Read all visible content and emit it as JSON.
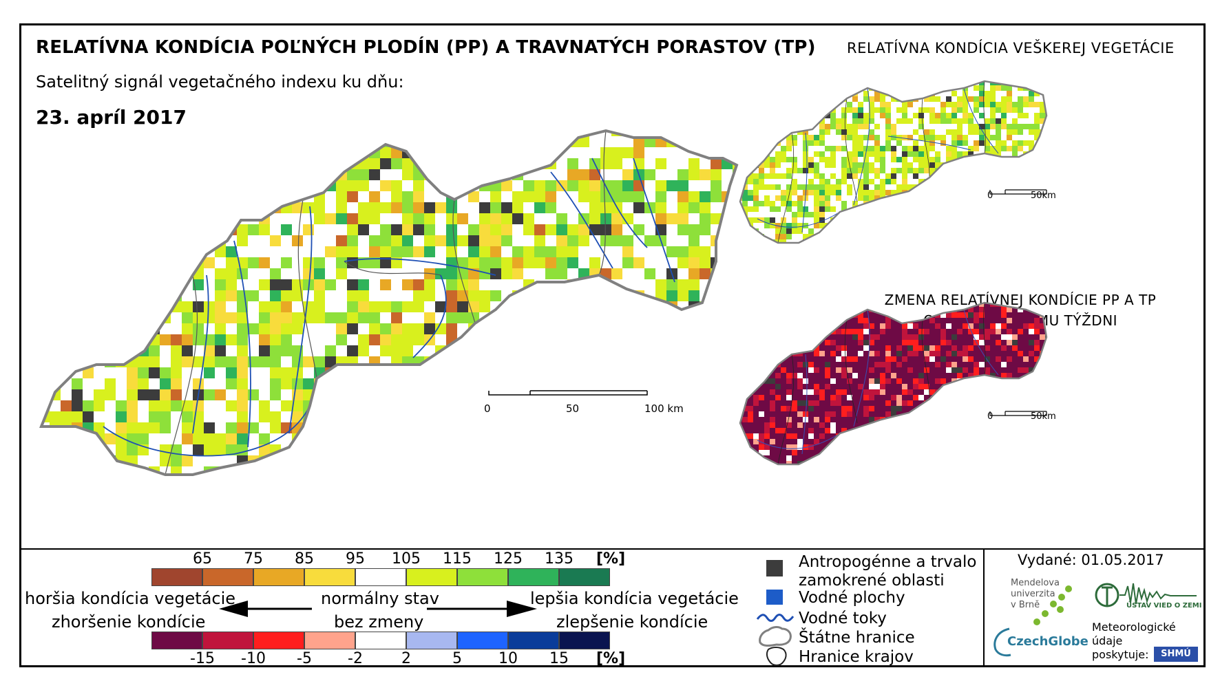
{
  "header": {
    "title": "RELATÍVNA KONDÍCIA POĽNÝCH PLODÍN (PP) A TRAVNATÝCH PORASTOV (TP)",
    "subtitle": "Satelitný signál vegetačného indexu ku dňu:",
    "date": "23. apríl 2017"
  },
  "main_map": {
    "scale": {
      "zero": "0",
      "mid": "50",
      "end": "100 km"
    }
  },
  "vegetation_map": {
    "title": "RELATÍVNA KONDÍCIA VEŠKEREJ VEGETÁCIE",
    "scale": {
      "zero": "0",
      "end": "50km"
    }
  },
  "change_map": {
    "title_line1": "ZMENA RELATÍVNEJ KONDÍCIE PP A TP",
    "title_line2": "OPROTI MINULÉMU TÝŽDNI",
    "scale": {
      "zero": "0",
      "end": "50km"
    }
  },
  "legend": {
    "condition_ticks": [
      "65",
      "75",
      "85",
      "95",
      "105",
      "115",
      "125",
      "135"
    ],
    "condition_unit": "[%]",
    "condition_colors": [
      "#a0452e",
      "#c9672a",
      "#e8a825",
      "#f8dc3c",
      "#ffffff",
      "#d8f01e",
      "#8ee03a",
      "#2fb35a",
      "#1a7a52"
    ],
    "change_ticks": [
      "-15",
      "-10",
      "-5",
      "-2",
      "2",
      "5",
      "10",
      "15"
    ],
    "change_unit": "[%]",
    "change_colors": [
      "#6e0a45",
      "#c0143c",
      "#ff1e1e",
      "#ffa38c",
      "#ffffff",
      "#a8b8f0",
      "#1e64ff",
      "#0a3c9a",
      "#0a1450"
    ],
    "left_line1": "horšia kondícia vegetácie",
    "left_line2": "zhoršenie kondície",
    "mid_line1": "normálny stav",
    "mid_line2": "bez zmeny",
    "right_line1": "lepšia kondícia vegetácie",
    "right_line2": "zlepšenie kondície"
  },
  "symbols": {
    "anthropogenic_line1": "Antropogénne a trvalo",
    "anthropogenic_line2": "zamokrené oblasti",
    "water_bodies": "Vodné plochy",
    "rivers": "Vodné toky",
    "state_border": "Štátne hranice",
    "region_border": "Hranice krajov"
  },
  "footer": {
    "issued": "Vydané: 01.05.2017",
    "mendel_line1": "Mendelova",
    "mendel_line2": "univerzita",
    "mendel_line3": "v Brně",
    "czechglobe": "CzechGlobe",
    "ustav": "ÚSTAV VIED O ZEMI",
    "meteo_line1": "Meteorologické",
    "meteo_line2": "údaje",
    "meteo_line3": "poskytuje:",
    "shmu": "SHMÚ"
  }
}
